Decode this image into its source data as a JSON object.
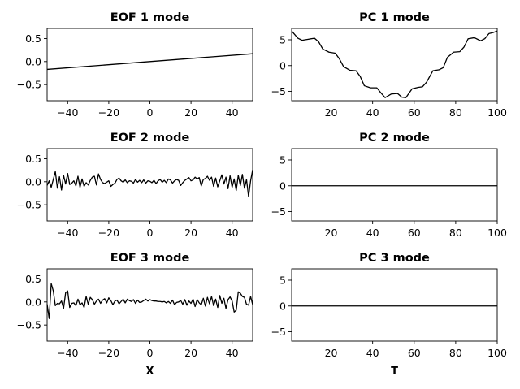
{
  "chart_data": [
    {
      "type": "line",
      "title": "EOF 1 mode",
      "xlabel": "",
      "ylabel": "",
      "xlim": [
        -50,
        50
      ],
      "ylim": [
        -0.85,
        0.72
      ],
      "xticks": [
        -40,
        -20,
        0,
        20,
        40
      ],
      "xtick_labels": [
        "−40",
        "−20",
        "0",
        "20",
        "40"
      ],
      "yticks": [
        0.5,
        0.0,
        -0.5
      ],
      "ytick_labels": [
        "0.5",
        "0.0",
        "−0.5"
      ],
      "grid": false,
      "series": [
        {
          "x": [
            -50,
            50
          ],
          "y": [
            -0.17,
            0.17
          ]
        }
      ]
    },
    {
      "type": "line",
      "title": "PC 1 mode",
      "xlabel": "",
      "ylabel": "",
      "xlim": [
        1,
        100
      ],
      "ylim": [
        -6.8,
        7.2
      ],
      "xticks": [
        20,
        40,
        60,
        80,
        100
      ],
      "xtick_labels": [
        "20",
        "40",
        "60",
        "80",
        "100"
      ],
      "yticks": [
        5,
        0,
        -5
      ],
      "ytick_labels": [
        "5",
        "0",
        "−5"
      ],
      "grid": false,
      "series": [
        {
          "x": [
            1,
            4,
            6,
            9,
            12,
            14,
            16,
            19,
            22,
            24,
            26,
            29,
            32,
            34,
            36,
            39,
            42,
            44,
            46,
            49,
            52,
            54,
            56,
            59,
            62,
            64,
            66,
            69,
            72,
            74,
            76,
            79,
            82,
            84,
            86,
            89,
            92,
            94,
            96,
            98,
            100
          ],
          "y": [
            6.7,
            5.3,
            4.9,
            5.1,
            5.3,
            4.6,
            3.2,
            2.6,
            2.4,
            1.3,
            -0.2,
            -0.9,
            -1.0,
            -2.1,
            -3.9,
            -4.3,
            -4.3,
            -5.3,
            -6.2,
            -5.5,
            -5.4,
            -6.1,
            -6.2,
            -4.5,
            -4.2,
            -4.1,
            -3.2,
            -1.0,
            -0.8,
            -0.4,
            1.6,
            2.6,
            2.7,
            3.6,
            5.2,
            5.4,
            4.8,
            5.2,
            6.2,
            6.4,
            6.7
          ]
        }
      ]
    },
    {
      "type": "line",
      "title": "EOF 2 mode",
      "xlabel": "",
      "ylabel": "",
      "xlim": [
        -50,
        50
      ],
      "ylim": [
        -0.85,
        0.72
      ],
      "xticks": [
        -40,
        -20,
        0,
        20,
        40
      ],
      "xtick_labels": [
        "−40",
        "−20",
        "0",
        "20",
        "40"
      ],
      "yticks": [
        0.5,
        0.0,
        -0.5
      ],
      "ytick_labels": [
        "0.5",
        "0.0",
        "−0.5"
      ],
      "grid": false,
      "series": [
        {
          "x": [
            -50,
            -49,
            -48,
            -47,
            -46,
            -45,
            -44,
            -43,
            -42,
            -41,
            -40,
            -39,
            -38,
            -37,
            -36,
            -35,
            -34,
            -33,
            -32,
            -31,
            -30,
            -29,
            -28,
            -27,
            -26,
            -25,
            -24,
            -23,
            -22,
            -21,
            -20,
            -19,
            -18,
            -17,
            -16,
            -15,
            -14,
            -13,
            -12,
            -11,
            -10,
            -9,
            -8,
            -7,
            -6,
            -5,
            -4,
            -3,
            -2,
            -1,
            0,
            1,
            2,
            3,
            4,
            5,
            6,
            7,
            8,
            9,
            10,
            11,
            12,
            13,
            14,
            15,
            16,
            17,
            18,
            19,
            20,
            21,
            22,
            23,
            24,
            25,
            26,
            27,
            28,
            29,
            30,
            31,
            32,
            33,
            34,
            35,
            36,
            37,
            38,
            39,
            40,
            41,
            42,
            43,
            44,
            45,
            46,
            47,
            48,
            49,
            50
          ],
          "y": [
            -0.08,
            0.02,
            -0.12,
            0.05,
            0.22,
            -0.14,
            0.11,
            -0.18,
            0.14,
            -0.05,
            0.18,
            -0.06,
            -0.03,
            0.02,
            -0.09,
            0.12,
            -0.12,
            0.06,
            -0.1,
            -0.02,
            -0.07,
            0.03,
            0.1,
            0.12,
            -0.07,
            0.17,
            0.05,
            -0.02,
            -0.04,
            -0.01,
            0.02,
            -0.1,
            -0.06,
            -0.03,
            0.05,
            0.08,
            0.02,
            -0.01,
            0.04,
            -0.02,
            0.02,
            0.01,
            -0.03,
            0.05,
            -0.01,
            0.03,
            -0.02,
            0.04,
            -0.03,
            0.02,
            0.01,
            -0.02,
            0.03,
            -0.04,
            0.02,
            0.05,
            -0.01,
            0.03,
            -0.02,
            0.06,
            0.04,
            -0.03,
            0.02,
            0.05,
            0.03,
            -0.08,
            -0.02,
            0.03,
            0.06,
            0.09,
            0.02,
            0.04,
            0.1,
            0.06,
            0.09,
            -0.09,
            0.05,
            0.07,
            0.12,
            0.03,
            0.1,
            -0.1,
            0.08,
            -0.11,
            0.02,
            0.15,
            -0.05,
            0.1,
            -0.15,
            0.13,
            -0.12,
            0.06,
            -0.19,
            0.14,
            -0.08,
            0.16,
            -0.14,
            0.05,
            -0.32,
            0.02,
            0.26
          ]
        }
      ]
    },
    {
      "type": "line",
      "title": "PC 2 mode",
      "xlabel": "",
      "ylabel": "",
      "xlim": [
        1,
        100
      ],
      "ylim": [
        -6.8,
        7.2
      ],
      "xticks": [
        20,
        40,
        60,
        80,
        100
      ],
      "xtick_labels": [
        "20",
        "40",
        "60",
        "80",
        "100"
      ],
      "yticks": [
        5,
        0,
        -5
      ],
      "ytick_labels": [
        "5",
        "0",
        "−5"
      ],
      "grid": false,
      "series": [
        {
          "x": [
            1,
            100
          ],
          "y": [
            0,
            0
          ]
        }
      ]
    },
    {
      "type": "line",
      "title": "EOF 3 mode",
      "xlabel": "X",
      "ylabel": "",
      "xlim": [
        -50,
        50
      ],
      "ylim": [
        -0.85,
        0.72
      ],
      "xticks": [
        -40,
        -20,
        0,
        20,
        40
      ],
      "xtick_labels": [
        "−40",
        "−20",
        "0",
        "20",
        "40"
      ],
      "yticks": [
        0.5,
        0.0,
        -0.5
      ],
      "ytick_labels": [
        "0.5",
        "0.0",
        "−0.5"
      ],
      "grid": false,
      "series": [
        {
          "x": [
            -50,
            -49,
            -48,
            -47,
            -46,
            -45,
            -44,
            -43,
            -42,
            -41,
            -40,
            -39,
            -38,
            -37,
            -36,
            -35,
            -34,
            -33,
            -32,
            -31,
            -30,
            -29,
            -28,
            -27,
            -26,
            -25,
            -24,
            -23,
            -22,
            -21,
            -20,
            -19,
            -18,
            -17,
            -16,
            -15,
            -14,
            -13,
            -12,
            -11,
            -10,
            -9,
            -8,
            -7,
            -6,
            -5,
            -4,
            -3,
            -2,
            -1,
            0,
            1,
            2,
            3,
            4,
            5,
            6,
            7,
            8,
            9,
            10,
            11,
            12,
            13,
            14,
            15,
            16,
            17,
            18,
            19,
            20,
            21,
            22,
            23,
            24,
            25,
            26,
            27,
            28,
            29,
            30,
            31,
            32,
            33,
            34,
            35,
            36,
            37,
            38,
            39,
            40,
            41,
            42,
            43,
            44,
            45,
            46,
            47,
            48,
            49,
            50
          ],
          "y": [
            -0.05,
            -0.36,
            0.4,
            0.24,
            -0.08,
            -0.03,
            -0.04,
            0.02,
            -0.14,
            0.2,
            0.24,
            -0.12,
            -0.03,
            -0.02,
            -0.08,
            0.06,
            -0.06,
            -0.02,
            -0.12,
            0.12,
            -0.05,
            0.1,
            0.05,
            -0.05,
            0.02,
            0.06,
            -0.03,
            0.04,
            0.07,
            -0.02,
            0.09,
            0.03,
            -0.06,
            0.02,
            0.04,
            -0.04,
            0.01,
            0.06,
            -0.02,
            0.06,
            0.03,
            0.01,
            0.05,
            -0.03,
            0.04,
            -0.01,
            0.0,
            0.03,
            0.06,
            0.02,
            0.05,
            0.03,
            0.02,
            0.02,
            0.01,
            0.01,
            0.0,
            0.01,
            -0.02,
            0.01,
            -0.03,
            0.04,
            -0.06,
            -0.01,
            0.0,
            0.03,
            -0.05,
            0.05,
            -0.07,
            0.02,
            -0.03,
            0.06,
            -0.1,
            0.05,
            -0.02,
            -0.06,
            0.08,
            -0.09,
            0.1,
            -0.04,
            0.12,
            -0.08,
            0.06,
            -0.12,
            0.14,
            -0.03,
            0.08,
            -0.14,
            0.05,
            0.11,
            0.02,
            -0.22,
            -0.18,
            0.22,
            0.19,
            0.12,
            0.1,
            -0.05,
            -0.07,
            0.12,
            -0.06
          ]
        }
      ]
    },
    {
      "type": "line",
      "title": "PC 3 mode",
      "xlabel": "T",
      "ylabel": "",
      "xlim": [
        1,
        100
      ],
      "ylim": [
        -6.8,
        7.2
      ],
      "xticks": [
        20,
        40,
        60,
        80,
        100
      ],
      "xtick_labels": [
        "20",
        "40",
        "60",
        "80",
        "100"
      ],
      "yticks": [
        5,
        0,
        -5
      ],
      "ytick_labels": [
        "5",
        "0",
        "−5"
      ],
      "grid": false,
      "series": [
        {
          "x": [
            1,
            100
          ],
          "y": [
            0,
            0
          ]
        }
      ]
    }
  ]
}
